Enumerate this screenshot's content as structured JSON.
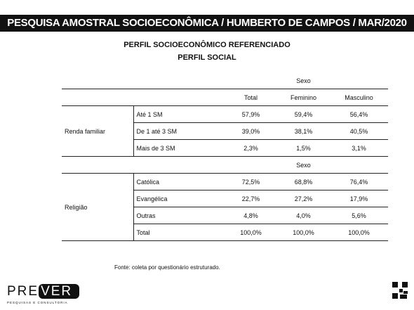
{
  "header": {
    "title": "PESQUISA AMOSTRAL SOCIOECONÔMICA / HUMBERTO DE CAMPOS / MAR/2020"
  },
  "subtitle": "PERFIL SOCIOECONÔMICO REFERENCIADO",
  "section": "PERFIL SOCIAL",
  "table": {
    "group_header": "Sexo",
    "columns": [
      "Total",
      "Feminino",
      "Masculino"
    ],
    "groups": [
      {
        "name": "Renda familiar",
        "rows": [
          {
            "label": "Até 1 SM",
            "values": [
              "57,9%",
              "59,4%",
              "56,4%"
            ]
          },
          {
            "label": "De 1 até 3 SM",
            "values": [
              "39,0%",
              "38,1%",
              "40,5%"
            ]
          },
          {
            "label": "Mais de 3 SM",
            "values": [
              "2,3%",
              "1,5%",
              "3,1%"
            ]
          }
        ]
      },
      {
        "name": "Religião",
        "header": "Sexo",
        "rows": [
          {
            "label": "Católica",
            "values": [
              "72,5%",
              "68,8%",
              "76,4%"
            ]
          },
          {
            "label": "Evangélica",
            "values": [
              "22,7%",
              "27,2%",
              "17,9%"
            ]
          },
          {
            "label": "Outras",
            "values": [
              "4,8%",
              "4,0%",
              "5,6%"
            ]
          },
          {
            "label": "Total",
            "values": [
              "100,0%",
              "100,0%",
              "100,0%"
            ]
          }
        ]
      }
    ]
  },
  "source": "Fonte: coleta por questionário estruturado.",
  "logo": {
    "parts": [
      "PRE",
      "VER"
    ],
    "tagline": "PESQUISAS E CONSULTORIA"
  }
}
